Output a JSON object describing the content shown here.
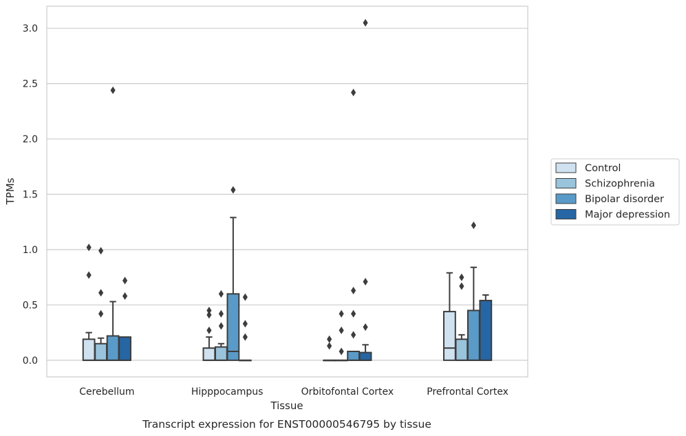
{
  "chart_data": {
    "type": "box",
    "caption": "Transcript expression for ENST00000546795 by tissue",
    "xlabel": "Tissue",
    "ylabel": "TPMs",
    "ylim": [
      -0.15,
      3.2
    ],
    "yticks": [
      "0.0",
      "0.5",
      "1.0",
      "1.5",
      "2.0",
      "2.5",
      "3.0"
    ],
    "grid": "horizontal",
    "legend_position": "right",
    "categories": [
      "Cerebellum",
      "Hipppocampus",
      "Orbitofontal Cortex",
      "Prefrontal Cortex"
    ],
    "series": [
      {
        "name": "Control",
        "color": "#d0e1f0",
        "boxes": [
          {
            "q1": 0.0,
            "median": 0.0,
            "q3": 0.19,
            "whisker_low": 0.0,
            "whisker_high": 0.25,
            "outliers": [
              1.02,
              0.77
            ]
          },
          {
            "q1": 0.0,
            "median": 0.0,
            "q3": 0.11,
            "whisker_low": 0.0,
            "whisker_high": 0.21,
            "outliers": [
              0.45,
              0.41,
              0.27
            ]
          },
          {
            "q1": 0.0,
            "median": 0.0,
            "q3": 0.0,
            "whisker_low": 0.0,
            "whisker_high": 0.0,
            "outliers": [
              0.19,
              0.13
            ]
          },
          {
            "q1": 0.0,
            "median": 0.11,
            "q3": 0.44,
            "whisker_low": 0.0,
            "whisker_high": 0.79,
            "outliers": []
          }
        ]
      },
      {
        "name": "Schizophrenia",
        "color": "#9ac3dc",
        "boxes": [
          {
            "q1": 0.0,
            "median": 0.0,
            "q3": 0.15,
            "whisker_low": 0.0,
            "whisker_high": 0.2,
            "outliers": [
              0.99,
              0.61,
              0.42
            ]
          },
          {
            "q1": 0.0,
            "median": 0.0,
            "q3": 0.12,
            "whisker_low": 0.0,
            "whisker_high": 0.15,
            "outliers": [
              0.6,
              0.42,
              0.31
            ]
          },
          {
            "q1": 0.0,
            "median": 0.0,
            "q3": 0.0,
            "whisker_low": 0.0,
            "whisker_high": 0.0,
            "outliers": [
              0.42,
              0.27,
              0.08
            ]
          },
          {
            "q1": 0.0,
            "median": 0.0,
            "q3": 0.19,
            "whisker_low": 0.0,
            "whisker_high": 0.23,
            "outliers": [
              0.75,
              0.67
            ]
          }
        ]
      },
      {
        "name": "Bipolar disorder",
        "color": "#5a9ac8",
        "boxes": [
          {
            "q1": 0.0,
            "median": 0.0,
            "q3": 0.22,
            "whisker_low": 0.0,
            "whisker_high": 0.53,
            "outliers": [
              2.44
            ]
          },
          {
            "q1": 0.0,
            "median": 0.08,
            "q3": 0.6,
            "whisker_low": 0.0,
            "whisker_high": 1.29,
            "outliers": [
              1.54
            ]
          },
          {
            "q1": 0.0,
            "median": 0.0,
            "q3": 0.08,
            "whisker_low": 0.0,
            "whisker_high": 0.08,
            "outliers": [
              2.42,
              0.63,
              0.42,
              0.23
            ]
          },
          {
            "q1": 0.0,
            "median": 0.0,
            "q3": 0.45,
            "whisker_low": 0.0,
            "whisker_high": 0.84,
            "outliers": [
              1.22
            ]
          }
        ]
      },
      {
        "name": "Major depression",
        "color": "#2666a4",
        "boxes": [
          {
            "q1": 0.0,
            "median": 0.0,
            "q3": 0.21,
            "whisker_low": 0.0,
            "whisker_high": 0.21,
            "outliers": [
              0.72,
              0.58
            ]
          },
          {
            "q1": 0.0,
            "median": 0.0,
            "q3": 0.0,
            "whisker_low": 0.0,
            "whisker_high": 0.0,
            "outliers": [
              0.57,
              0.33,
              0.21
            ]
          },
          {
            "q1": 0.0,
            "median": 0.0,
            "q3": 0.07,
            "whisker_low": 0.0,
            "whisker_high": 0.14,
            "outliers": [
              3.05,
              0.71,
              0.3
            ]
          },
          {
            "q1": 0.0,
            "median": 0.0,
            "q3": 0.54,
            "whisker_low": 0.0,
            "whisker_high": 0.59,
            "outliers": []
          }
        ]
      }
    ]
  }
}
